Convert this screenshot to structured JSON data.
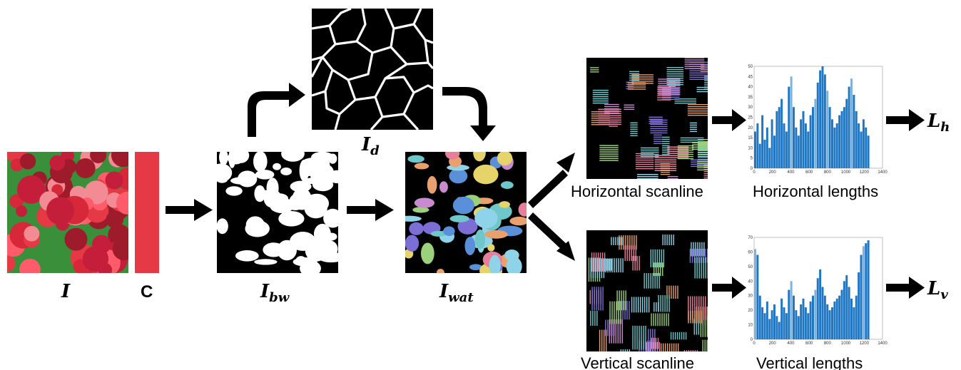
{
  "labels": {
    "input_main": "I",
    "input_sub": "",
    "color_label": "C",
    "bw_main": "I",
    "bw_sub": "bw",
    "dist_main": "I",
    "dist_sub": "d",
    "wat_main": "I",
    "wat_sub": "wat",
    "out_h_main": "L",
    "out_h_sub": "h",
    "out_v_main": "L",
    "out_v_sub": "v"
  },
  "captions": {
    "horizontal_scanline": "Horizontal scanline",
    "vertical_scanline": "Vertical scanline",
    "horizontal_lengths": "Horizontal lengths",
    "vertical_lengths": "Vertical lengths"
  },
  "colors": {
    "palette_red": "#e63946",
    "bar_blue": "#1f77c4",
    "bar_light": "#7fb3dc"
  },
  "chart_data": [
    {
      "type": "bar",
      "name": "",
      "x_ticks": [
        "0",
        "200",
        "400",
        "600",
        "800",
        "1000",
        "1200",
        "1400"
      ],
      "y_ticks": [
        "0",
        "5",
        "10",
        "15",
        "20",
        "25",
        "30",
        "35",
        "40",
        "45",
        "50"
      ],
      "xlim": [
        0,
        1400
      ],
      "ylim": [
        0,
        50
      ],
      "values": [
        18,
        22,
        12,
        26,
        14,
        20,
        10,
        24,
        16,
        28,
        30,
        34,
        22,
        18,
        40,
        45,
        30,
        20,
        16,
        24,
        28,
        22,
        18,
        26,
        30,
        34,
        42,
        48,
        50,
        46,
        38,
        30,
        24,
        20,
        22,
        26,
        28,
        30,
        34,
        40,
        44,
        36,
        28,
        22,
        18,
        24,
        20,
        16
      ]
    },
    {
      "type": "bar",
      "name": "",
      "x_ticks": [
        "0",
        "200",
        "400",
        "600",
        "800",
        "1000",
        "1200",
        "1400"
      ],
      "y_ticks": [
        "0",
        "10",
        "20",
        "30",
        "40",
        "50",
        "60",
        "70"
      ],
      "xlim": [
        0,
        1400
      ],
      "ylim": [
        0,
        70
      ],
      "values": [
        62,
        58,
        30,
        22,
        18,
        26,
        14,
        20,
        24,
        16,
        12,
        28,
        22,
        18,
        34,
        40,
        30,
        20,
        16,
        24,
        28,
        22,
        18,
        26,
        30,
        34,
        42,
        48,
        36,
        30,
        24,
        20,
        22,
        26,
        28,
        30,
        34,
        40,
        44,
        36,
        28,
        22,
        30,
        46,
        58,
        64,
        66,
        68
      ]
    }
  ]
}
